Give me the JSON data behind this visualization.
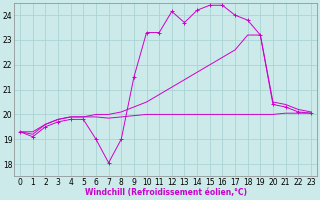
{
  "xlabel": "Windchill (Refroidissement éolien,°C)",
  "background_color": "#cceaea",
  "grid_color": "#aad4d4",
  "line_color": "#cc00cc",
  "xlim": [
    -0.5,
    23.5
  ],
  "ylim": [
    17.5,
    24.5
  ],
  "yticks": [
    18,
    19,
    20,
    21,
    22,
    23,
    24
  ],
  "xticks": [
    0,
    1,
    2,
    3,
    4,
    5,
    6,
    7,
    8,
    9,
    10,
    11,
    12,
    13,
    14,
    15,
    16,
    17,
    18,
    19,
    20,
    21,
    22,
    23
  ],
  "line1_x": [
    0,
    1,
    2,
    3,
    4,
    5,
    6,
    7,
    8,
    9,
    10,
    11,
    12,
    13,
    14,
    15,
    16,
    17,
    18,
    19,
    20,
    21,
    22,
    23
  ],
  "line1_y": [
    19.3,
    19.1,
    19.5,
    19.7,
    19.8,
    19.8,
    19.0,
    18.05,
    19.0,
    21.5,
    23.3,
    23.3,
    24.15,
    23.7,
    24.2,
    24.4,
    24.4,
    24.0,
    23.8,
    23.2,
    20.4,
    20.3,
    20.1,
    20.05
  ],
  "line2_x": [
    0,
    1,
    2,
    3,
    4,
    5,
    6,
    7,
    8,
    9,
    10,
    11,
    12,
    13,
    14,
    15,
    16,
    17,
    18,
    19,
    20,
    21,
    22,
    23
  ],
  "line2_y": [
    19.3,
    19.3,
    19.6,
    19.8,
    19.9,
    19.9,
    20.0,
    20.0,
    20.1,
    20.3,
    20.5,
    20.8,
    21.1,
    21.4,
    21.7,
    22.0,
    22.3,
    22.6,
    23.2,
    23.2,
    20.5,
    20.4,
    20.2,
    20.1
  ],
  "line3_x": [
    0,
    1,
    2,
    3,
    4,
    5,
    6,
    7,
    8,
    9,
    10,
    11,
    12,
    13,
    14,
    15,
    16,
    17,
    18,
    19,
    20,
    21,
    22,
    23
  ],
  "line3_y": [
    19.3,
    19.2,
    19.6,
    19.8,
    19.9,
    19.9,
    19.9,
    19.85,
    19.9,
    19.95,
    20.0,
    20.0,
    20.0,
    20.0,
    20.0,
    20.0,
    20.0,
    20.0,
    20.0,
    20.0,
    20.0,
    20.05,
    20.05,
    20.05
  ]
}
